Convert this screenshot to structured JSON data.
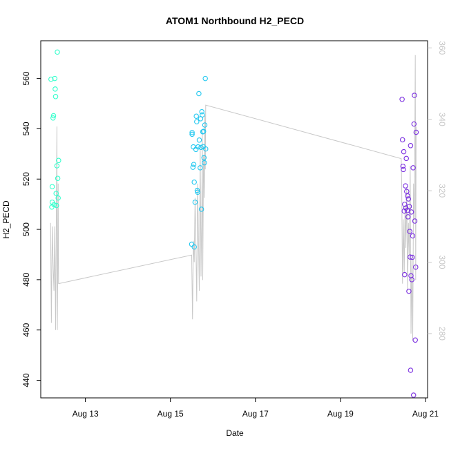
{
  "chart_data": {
    "type": "scatter",
    "title": "ATOM1 Northbound H2_PECD",
    "xlabel": "Date",
    "ylabel": "H2_PECD",
    "x_ticks": [
      "Aug 13",
      "Aug 15",
      "Aug 17",
      "Aug 19",
      "Aug 21"
    ],
    "x_tick_days": [
      13,
      15,
      17,
      19,
      21
    ],
    "xlim_days": [
      11.95,
      21.05
    ],
    "ylim": [
      433,
      575
    ],
    "y_ticks": [
      440,
      460,
      480,
      500,
      520,
      540,
      560
    ],
    "y2lim": [
      262,
      362
    ],
    "y2_ticks": [
      280,
      300,
      320,
      340,
      360
    ],
    "series": [
      {
        "color": "#33ffcc",
        "points": [
          [
            12.19,
            559.7
          ],
          [
            12.22,
            517.0
          ],
          [
            12.22,
            510.8
          ],
          [
            12.21,
            508.9
          ],
          [
            12.24,
            544.3
          ],
          [
            12.25,
            545.2
          ],
          [
            12.26,
            509.8
          ],
          [
            12.28,
            560.0
          ],
          [
            12.29,
            555.8
          ],
          [
            12.3,
            552.8
          ],
          [
            12.31,
            514.3
          ],
          [
            12.32,
            509.5
          ],
          [
            12.33,
            525.3
          ],
          [
            12.34,
            570.5
          ],
          [
            12.35,
            520.3
          ],
          [
            12.36,
            512.5
          ],
          [
            12.37,
            527.4
          ]
        ]
      },
      {
        "color": "#22c8f0",
        "points": [
          [
            15.5,
            494.1
          ],
          [
            15.51,
            538.5
          ],
          [
            15.51,
            537.8
          ],
          [
            15.53,
            524.7
          ],
          [
            15.54,
            532.8
          ],
          [
            15.55,
            525.8
          ],
          [
            15.56,
            518.8
          ],
          [
            15.56,
            493.0
          ],
          [
            15.58,
            510.8
          ],
          [
            15.6,
            531.8
          ],
          [
            15.61,
            545.0
          ],
          [
            15.62,
            542.8
          ],
          [
            15.63,
            515.5
          ],
          [
            15.64,
            514.8
          ],
          [
            15.65,
            532.8
          ],
          [
            15.67,
            554.0
          ],
          [
            15.68,
            535.5
          ],
          [
            15.7,
            524.5
          ],
          [
            15.71,
            544.0
          ],
          [
            15.72,
            532.6
          ],
          [
            15.73,
            508.0
          ],
          [
            15.74,
            546.8
          ],
          [
            15.75,
            545.5
          ],
          [
            15.76,
            538.8
          ],
          [
            15.77,
            532.9
          ],
          [
            15.78,
            539.0
          ],
          [
            15.79,
            528.5
          ],
          [
            15.8,
            526.5
          ],
          [
            15.81,
            541.5
          ],
          [
            15.82,
            560.0
          ],
          [
            15.83,
            532.0
          ]
        ]
      },
      {
        "color": "#7a2ee0",
        "points": [
          [
            20.45,
            551.7
          ],
          [
            20.46,
            535.6
          ],
          [
            20.47,
            525.1
          ],
          [
            20.48,
            523.8
          ],
          [
            20.49,
            530.9
          ],
          [
            20.5,
            507.3
          ],
          [
            20.51,
            510.0
          ],
          [
            20.51,
            482.0
          ],
          [
            20.53,
            517.3
          ],
          [
            20.54,
            508.5
          ],
          [
            20.55,
            528.2
          ],
          [
            20.56,
            515.1
          ],
          [
            20.57,
            507.5
          ],
          [
            20.58,
            513.3
          ],
          [
            20.59,
            505.0
          ],
          [
            20.6,
            512.1
          ],
          [
            20.61,
            475.4
          ],
          [
            20.62,
            509.1
          ],
          [
            20.63,
            499.2
          ],
          [
            20.64,
            489.0
          ],
          [
            20.65,
            533.3
          ],
          [
            20.66,
            481.6
          ],
          [
            20.67,
            506.9
          ],
          [
            20.68,
            480.0
          ],
          [
            20.69,
            488.9
          ],
          [
            20.7,
            497.4
          ],
          [
            20.71,
            524.5
          ],
          [
            20.72,
            434.1
          ],
          [
            20.73,
            541.9
          ],
          [
            20.74,
            553.3
          ],
          [
            20.75,
            503.3
          ],
          [
            20.76,
            456.0
          ],
          [
            20.77,
            485.0
          ],
          [
            20.78,
            538.6
          ],
          [
            20.65,
            444.0
          ]
        ]
      }
    ],
    "line_series": {
      "color": "#c8c8c8",
      "axis": "right",
      "points": [
        [
          12.18,
          311
        ],
        [
          12.2,
          283
        ],
        [
          12.22,
          310
        ],
        [
          12.24,
          300
        ],
        [
          12.26,
          292
        ],
        [
          12.28,
          310
        ],
        [
          12.3,
          281
        ],
        [
          12.31,
          302
        ],
        [
          12.32,
          321
        ],
        [
          12.33,
          338
        ],
        [
          12.34,
          281
        ],
        [
          12.35,
          296
        ],
        [
          12.36,
          322
        ],
        [
          12.37,
          294
        ],
        [
          15.5,
          302
        ],
        [
          15.52,
          284
        ],
        [
          15.54,
          306
        ],
        [
          15.56,
          300
        ],
        [
          15.58,
          318
        ],
        [
          15.6,
          305
        ],
        [
          15.62,
          289
        ],
        [
          15.64,
          322
        ],
        [
          15.66,
          307
        ],
        [
          15.68,
          292
        ],
        [
          15.7,
          332
        ],
        [
          15.72,
          296
        ],
        [
          15.74,
          316
        ],
        [
          15.75,
          337
        ],
        [
          15.76,
          295
        ],
        [
          15.78,
          330
        ],
        [
          15.8,
          318
        ],
        [
          15.81,
          341
        ],
        [
          15.82,
          326
        ],
        [
          15.83,
          344
        ],
        [
          20.43,
          329
        ],
        [
          20.44,
          322
        ],
        [
          20.46,
          294
        ],
        [
          20.48,
          312
        ],
        [
          20.5,
          297
        ],
        [
          20.52,
          316
        ],
        [
          20.54,
          304
        ],
        [
          20.56,
          321
        ],
        [
          20.58,
          292
        ],
        [
          20.6,
          311
        ],
        [
          20.62,
          302
        ],
        [
          20.64,
          327
        ],
        [
          20.66,
          280
        ],
        [
          20.68,
          301
        ],
        [
          20.7,
          278
        ],
        [
          20.72,
          322
        ],
        [
          20.74,
          312
        ],
        [
          20.76,
          358
        ],
        [
          20.77,
          295
        ],
        [
          20.78,
          338
        ]
      ]
    }
  }
}
